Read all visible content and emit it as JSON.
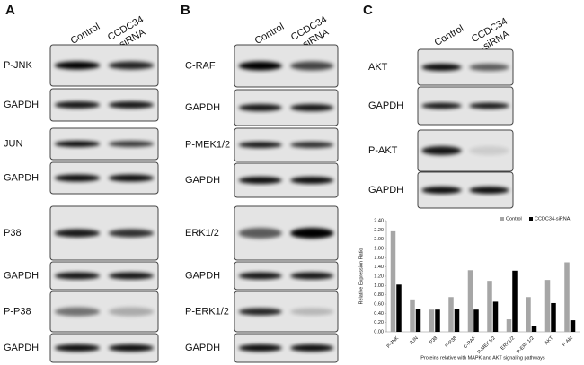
{
  "panels": [
    {
      "label": "A",
      "columns": [
        [
          "Control"
        ],
        [
          "CCDC34",
          "-siRNA"
        ]
      ],
      "rows": [
        "P-JNK",
        "GAPDH",
        "JUN",
        "GAPDH",
        "P38",
        "GAPDH",
        "P-P38",
        "GAPDH"
      ]
    },
    {
      "label": "B",
      "columns": [
        [
          "Control"
        ],
        [
          "CCDC34",
          "-siRNA"
        ]
      ],
      "rows": [
        "C-RAF",
        "GAPDH",
        "P-MEK1/2",
        "GAPDH",
        "ERK1/2",
        "GAPDH",
        "P-ERK1/2",
        "GAPDH"
      ]
    },
    {
      "label": "C",
      "columns": [
        [
          "Control"
        ],
        [
          "CCDC34",
          "-siRNA"
        ]
      ],
      "rows": [
        "AKT",
        "GAPDH",
        "P-AKT",
        "GAPDH"
      ]
    }
  ],
  "chart_data": {
    "type": "bar",
    "y_label": "Relative Expression Ratio",
    "x_label": "Proteins relative with MAPK and AKT signaling pathways",
    "categories": [
      "P-JNK",
      "JUN",
      "P38",
      "P-P38",
      "C-RAF",
      "P-MEK1/2",
      "ERK1/2",
      "P-ERK1/2",
      "AKT",
      "P-Akt"
    ],
    "series": [
      {
        "name": "Control",
        "color": "#a6a6a6",
        "values": [
          2.17,
          0.7,
          0.48,
          0.75,
          1.33,
          1.1,
          0.27,
          0.75,
          1.12,
          1.5
        ]
      },
      {
        "name": "CCDC34-siRNA",
        "color": "#000000",
        "values": [
          1.02,
          0.5,
          0.48,
          0.5,
          0.48,
          0.65,
          1.32,
          0.13,
          0.62,
          0.25
        ]
      }
    ],
    "ylim": [
      0,
      2.4
    ],
    "yticks": [
      {
        "value": 0,
        "label": "0.00"
      },
      {
        "value": 0.2,
        "label": "0.20"
      },
      {
        "value": 0.4,
        "label": "0.40"
      },
      {
        "value": 0.6,
        "label": "0.60"
      },
      {
        "value": 0.8,
        "label": "0.80"
      },
      {
        "value": 1,
        "label": "1.00"
      },
      {
        "value": 1.2,
        "label": "1.20"
      },
      {
        "value": 1.4,
        "label": "1.40"
      },
      {
        "value": 1.6,
        "label": "1.60"
      },
      {
        "value": 1.8,
        "label": "1.80"
      },
      {
        "value": 2,
        "label": "2.00"
      },
      {
        "value": 2.2,
        "label": "2.20"
      },
      {
        "value": 2.4,
        "label": "2.40"
      }
    ],
    "legend": "top-right"
  }
}
